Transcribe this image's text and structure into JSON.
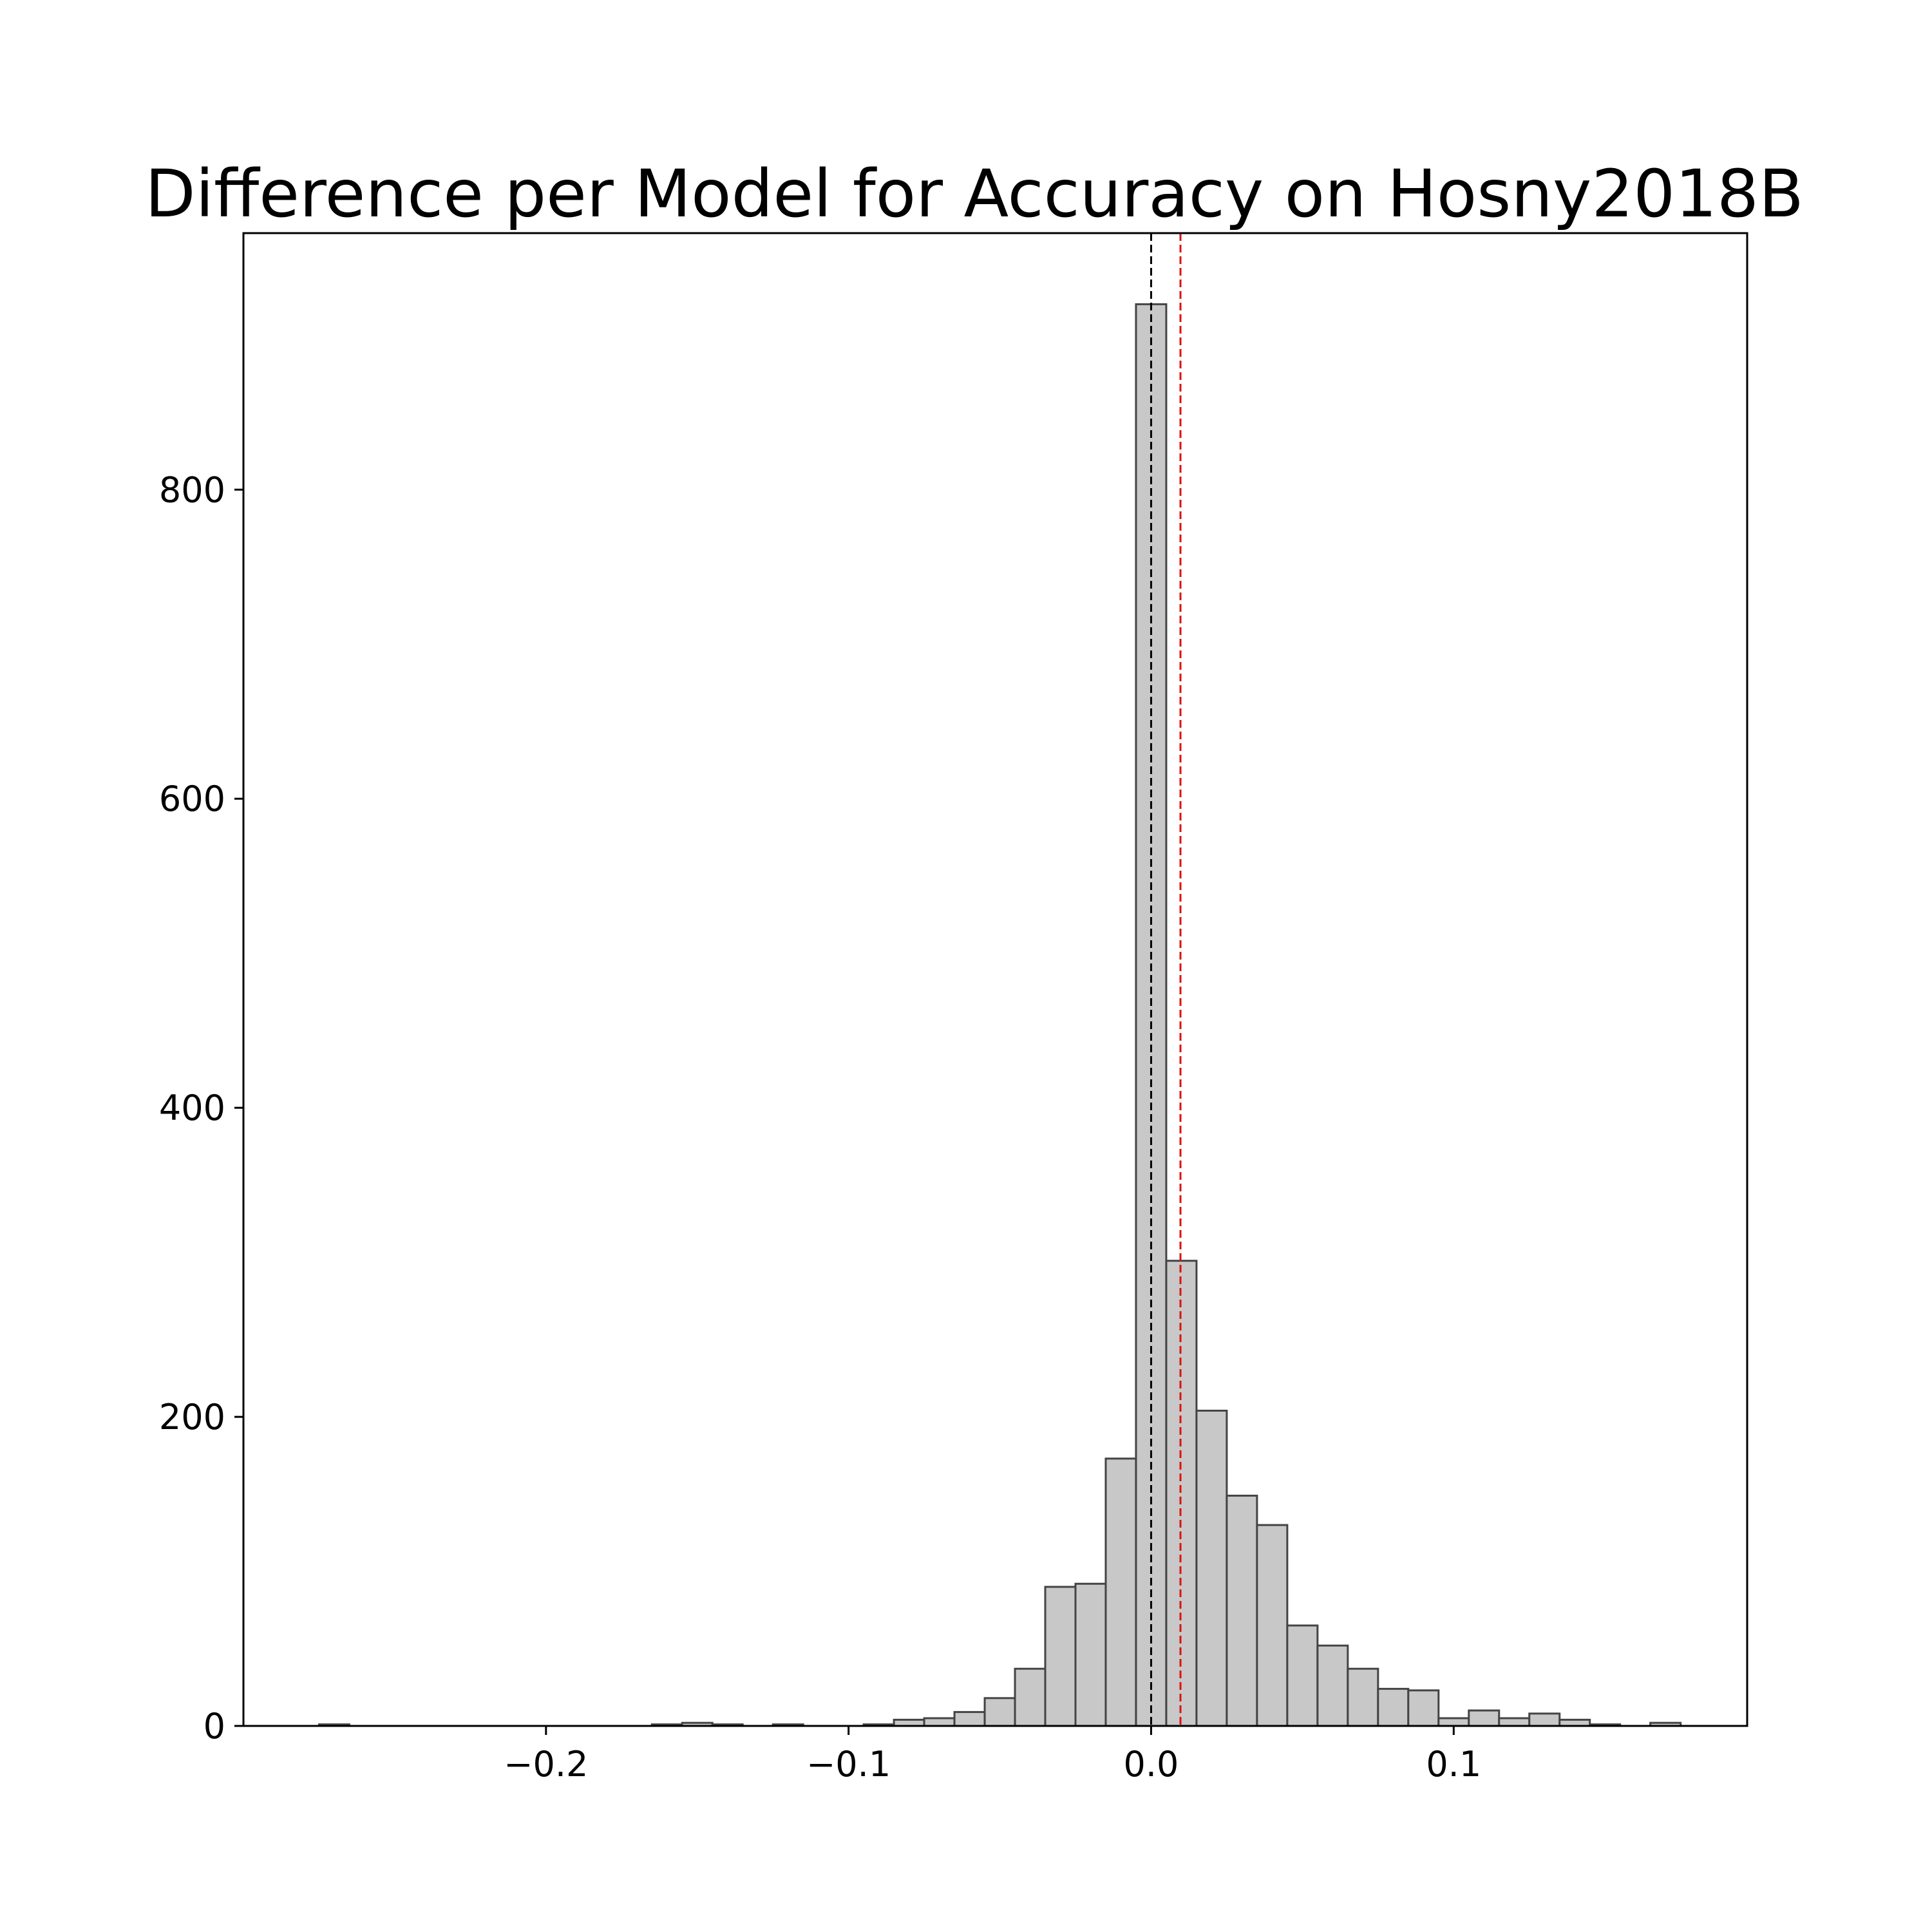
{
  "chart_data": {
    "type": "bar",
    "title": "Difference per Model for Accuracy on Hosny2018B",
    "xlabel": "",
    "ylabel": "",
    "xlim": [
      -0.3,
      0.197
    ],
    "ylim": [
      0,
      966
    ],
    "xticks": [
      -0.2,
      -0.1,
      0.0,
      0.1
    ],
    "xtick_labels": [
      "−0.2",
      "−0.1",
      "0.0",
      "0.1"
    ],
    "yticks": [
      0,
      200,
      400,
      600,
      800
    ],
    "ytick_labels": [
      "0",
      "200",
      "400",
      "600",
      "800"
    ],
    "bin_edges": [
      -0.275,
      -0.265,
      -0.255,
      -0.245,
      -0.235,
      -0.225,
      -0.215,
      -0.205,
      -0.195,
      -0.185,
      -0.175,
      -0.165,
      -0.155,
      -0.145,
      -0.135,
      -0.125,
      -0.115,
      -0.105,
      -0.095,
      -0.085,
      -0.075,
      -0.065,
      -0.055,
      -0.045,
      -0.035,
      -0.025,
      -0.015,
      -0.005,
      0.005,
      0.015,
      0.025,
      0.035,
      0.045,
      0.055,
      0.065,
      0.075,
      0.085,
      0.095,
      0.105,
      0.115,
      0.125,
      0.135,
      0.145,
      0.155,
      0.165,
      0.175
    ],
    "counts": [
      1,
      0,
      0,
      0,
      0,
      0,
      0,
      0,
      0,
      0,
      0,
      1,
      2,
      1,
      0,
      1,
      0,
      0,
      1,
      4,
      5,
      9,
      18,
      37,
      90,
      92,
      173,
      920,
      301,
      204,
      149,
      130,
      65,
      52,
      37,
      24,
      23,
      5,
      10,
      5,
      8,
      4,
      1,
      0,
      2
    ],
    "reference_lines": [
      {
        "x": 0.0,
        "color": "#000000",
        "style": "dashed"
      },
      {
        "x": 0.0097,
        "color": "#dd1111",
        "style": "dashed"
      }
    ],
    "grid": false,
    "bar_color": "#c8c8c8",
    "edge_color": "#444444"
  }
}
